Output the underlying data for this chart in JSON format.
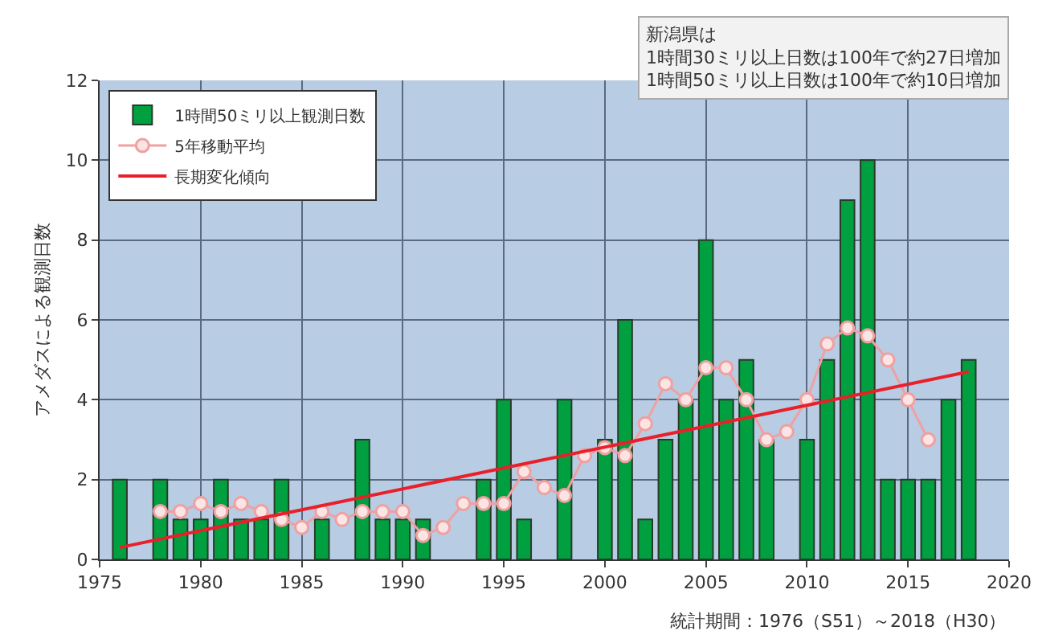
{
  "chart_data": {
    "type": "bar",
    "ylabel": "アメダスによる観測日数",
    "x": [
      1976,
      1977,
      1978,
      1979,
      1980,
      1981,
      1982,
      1983,
      1984,
      1985,
      1986,
      1987,
      1988,
      1989,
      1990,
      1991,
      1992,
      1993,
      1994,
      1995,
      1996,
      1997,
      1998,
      1999,
      2000,
      2001,
      2002,
      2003,
      2004,
      2005,
      2006,
      2007,
      2008,
      2009,
      2010,
      2011,
      2012,
      2013,
      2014,
      2015,
      2016,
      2017,
      2018
    ],
    "series": [
      {
        "name": "1時間50ミリ以上観測日数",
        "color": "#00a040",
        "values": [
          2,
          0,
          2,
          1,
          1,
          2,
          1,
          1,
          2,
          0,
          1,
          0,
          3,
          1,
          1,
          1,
          0,
          0,
          2,
          4,
          1,
          0,
          4,
          0,
          3,
          6,
          1,
          3,
          4,
          8,
          4,
          5,
          3,
          0,
          3,
          5,
          9,
          10,
          2,
          2,
          2,
          4,
          5
        ]
      },
      {
        "name": "5年移動平均",
        "type": "line",
        "color": "#f0a0a0",
        "marker": "circle",
        "x": [
          1978,
          1979,
          1980,
          1981,
          1982,
          1983,
          1984,
          1985,
          1986,
          1987,
          1988,
          1989,
          1990,
          1991,
          1992,
          1993,
          1994,
          1995,
          1996,
          1997,
          1998,
          1999,
          2000,
          2001,
          2002,
          2003,
          2004,
          2005,
          2006,
          2007,
          2008,
          2009,
          2010,
          2011,
          2012,
          2013,
          2014,
          2015,
          2016
        ],
        "values": [
          1.2,
          1.2,
          1.4,
          1.2,
          1.4,
          1.2,
          1.0,
          0.8,
          1.2,
          1.0,
          1.2,
          1.2,
          1.2,
          0.6,
          0.8,
          1.4,
          1.4,
          1.4,
          2.2,
          1.8,
          1.6,
          2.6,
          2.8,
          2.6,
          3.4,
          4.4,
          4.0,
          4.8,
          4.8,
          4.0,
          3.0,
          3.2,
          4.0,
          5.4,
          5.8,
          5.6,
          5.0,
          4.0,
          3.0
        ]
      },
      {
        "name": "長期変化傾向",
        "type": "line",
        "color": "#e8202a",
        "marker": "none",
        "x": [
          1976,
          2018
        ],
        "values": [
          0.3,
          4.7
        ]
      }
    ],
    "xlim": [
      1975,
      2020
    ],
    "xticks": [
      1975,
      1980,
      1985,
      1990,
      1995,
      2000,
      2005,
      2010,
      2015,
      2020
    ],
    "ylim": [
      0,
      12
    ],
    "yticks": [
      0,
      2,
      4,
      6,
      8,
      10,
      12
    ],
    "grid": true,
    "legend": "top left",
    "line_style": "solid",
    "annotations": [
      "新潟県は\n1時間30ミリ以上日数は100年で約27日増加\n1時間50ミリ以上日数は100年で約10日増加",
      "統計期間：1976（S51）～2018（H30）"
    ]
  }
}
